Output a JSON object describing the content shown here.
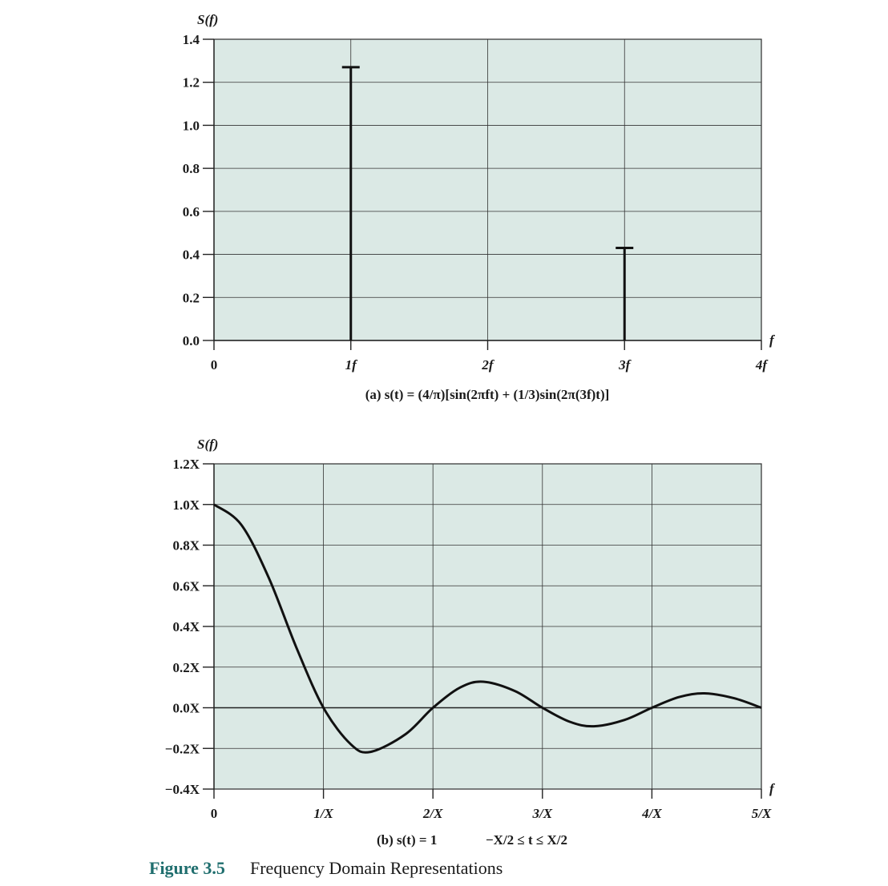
{
  "chart_data": [
    {
      "type": "bar",
      "panel": "a",
      "ylabel": "S(f)",
      "xlabel": "f",
      "caption": "(a) s(t) = (4/π)[sin(2πft) + (1/3)sin(2π(3f)t)]",
      "xlim": [
        0,
        4
      ],
      "ylim": [
        0,
        1.4
      ],
      "xticks": [
        0,
        1,
        2,
        3,
        4
      ],
      "xtick_labels": [
        "0",
        "1f",
        "2f",
        "3f",
        "4f"
      ],
      "yticks": [
        0.0,
        0.2,
        0.4,
        0.6,
        0.8,
        1.0,
        1.2,
        1.4
      ],
      "ytick_labels": [
        "0.0",
        "0.2",
        "0.4",
        "0.6",
        "0.8",
        "1.0",
        "1.2",
        "1.4"
      ],
      "grid": true,
      "x": [
        1,
        3
      ],
      "values": [
        1.27,
        0.43
      ]
    },
    {
      "type": "line",
      "panel": "b",
      "ylabel": "S(f)",
      "xlabel": "f",
      "caption_left": "(b) s(t) = 1",
      "caption_right": "−X/2 ≤ t ≤ X/2",
      "xlim": [
        0,
        5
      ],
      "ylim": [
        -0.4,
        1.2
      ],
      "xticks": [
        0,
        1,
        2,
        3,
        4,
        5
      ],
      "xtick_labels": [
        "0",
        "1/X",
        "2/X",
        "3/X",
        "4/X",
        "5/X"
      ],
      "yticks": [
        -0.4,
        -0.2,
        0.0,
        0.2,
        0.4,
        0.6,
        0.8,
        1.0,
        1.2
      ],
      "ytick_labels": [
        "−0.4X",
        "−0.2X",
        "0.0X",
        "0.2X",
        "0.4X",
        "0.6X",
        "0.8X",
        "1.0X",
        "1.2X"
      ],
      "grid": true,
      "x": [
        0,
        0.25,
        0.5,
        0.75,
        1.0,
        1.25,
        1.43,
        1.75,
        2.0,
        2.25,
        2.46,
        2.75,
        3.0,
        3.25,
        3.47,
        3.75,
        4.0,
        4.25,
        4.48,
        4.75,
        5.0
      ],
      "values": [
        1.0,
        0.9,
        0.64,
        0.3,
        0.0,
        -0.18,
        -0.217,
        -0.13,
        0.0,
        0.1,
        0.128,
        0.082,
        0.0,
        -0.069,
        -0.091,
        -0.06,
        0.0,
        0.053,
        0.071,
        0.047,
        0.0
      ]
    }
  ],
  "figure": {
    "number": "Figure 3.5",
    "title": "Frequency Domain Representations"
  }
}
